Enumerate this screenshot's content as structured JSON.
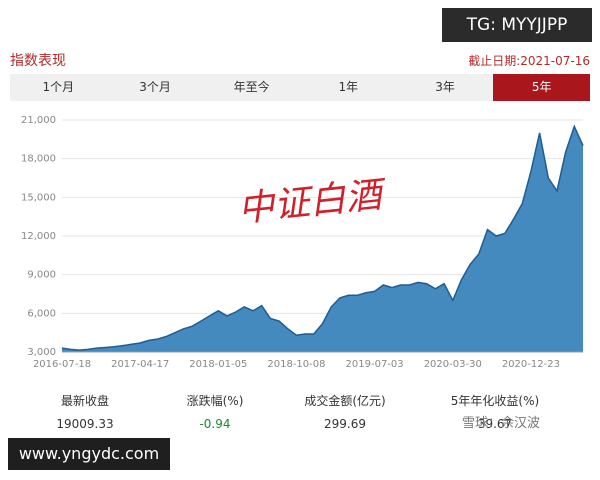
{
  "header": {
    "title": "指数表现",
    "date": "截止日期:2021-07-16"
  },
  "watermarks": {
    "top": "TG: MYYJJPP",
    "bottom": "www.yngydc.com",
    "xueqiu": "雪球：余汉波"
  },
  "tabs": [
    {
      "label": "1个月",
      "selected": false
    },
    {
      "label": "3个月",
      "selected": false
    },
    {
      "label": "年至今",
      "selected": false
    },
    {
      "label": "1年",
      "selected": false
    },
    {
      "label": "3年",
      "selected": false
    },
    {
      "label": "5年",
      "selected": true
    }
  ],
  "chart_data": {
    "type": "area",
    "annotation": "中证白酒",
    "categories": [
      "2016-07-18",
      null,
      null,
      null,
      null,
      null,
      null,
      null,
      null,
      "2017-04-17",
      null,
      null,
      null,
      null,
      null,
      null,
      null,
      null,
      "2018-01-05",
      null,
      null,
      null,
      null,
      null,
      null,
      null,
      null,
      "2018-10-08",
      null,
      null,
      null,
      null,
      null,
      null,
      null,
      null,
      "2019-07-03",
      null,
      null,
      null,
      null,
      null,
      null,
      null,
      null,
      "2020-03-30",
      null,
      null,
      null,
      null,
      null,
      null,
      null,
      null,
      "2020-12-23",
      null,
      null,
      null,
      null,
      null,
      null
    ],
    "series": [
      {
        "name": "中证白酒",
        "color": "#3a84bb",
        "line_color": "#1d5d94",
        "values": [
          3300,
          3200,
          3150,
          3200,
          3300,
          3350,
          3400,
          3500,
          3600,
          3700,
          3900,
          4000,
          4200,
          4500,
          4800,
          5000,
          5400,
          5800,
          6200,
          5800,
          6100,
          6500,
          6200,
          6600,
          5600,
          5400,
          4800,
          4300,
          4400,
          4400,
          5200,
          6500,
          7200,
          7400,
          7400,
          7600,
          7700,
          8200,
          8000,
          8200,
          8200,
          8400,
          8300,
          7900,
          8300,
          7000,
          8600,
          9800,
          10600,
          12500,
          12000,
          12200,
          13300,
          14500,
          17000,
          20000,
          16500,
          15500,
          18500,
          20500,
          19009
        ]
      }
    ],
    "ylim": [
      3000,
      21000
    ],
    "yticks": [
      {
        "value": 3000,
        "label": "3,000"
      },
      {
        "value": 6000,
        "label": "6,000"
      },
      {
        "value": 9000,
        "label": "9,000"
      },
      {
        "value": 12000,
        "label": "12,000"
      },
      {
        "value": 15000,
        "label": "15,000"
      },
      {
        "value": 18000,
        "label": "18,000"
      },
      {
        "value": 21000,
        "label": "21,000"
      }
    ],
    "grid": true
  },
  "stats": [
    {
      "label": "最新收盘",
      "value": "19009.33"
    },
    {
      "label": "涨跌幅(%)",
      "value": "-0.94"
    },
    {
      "label": "成交金额(亿元)",
      "value": "299.69"
    },
    {
      "label": "5年年化收益(%)",
      "value": "39.67"
    }
  ]
}
